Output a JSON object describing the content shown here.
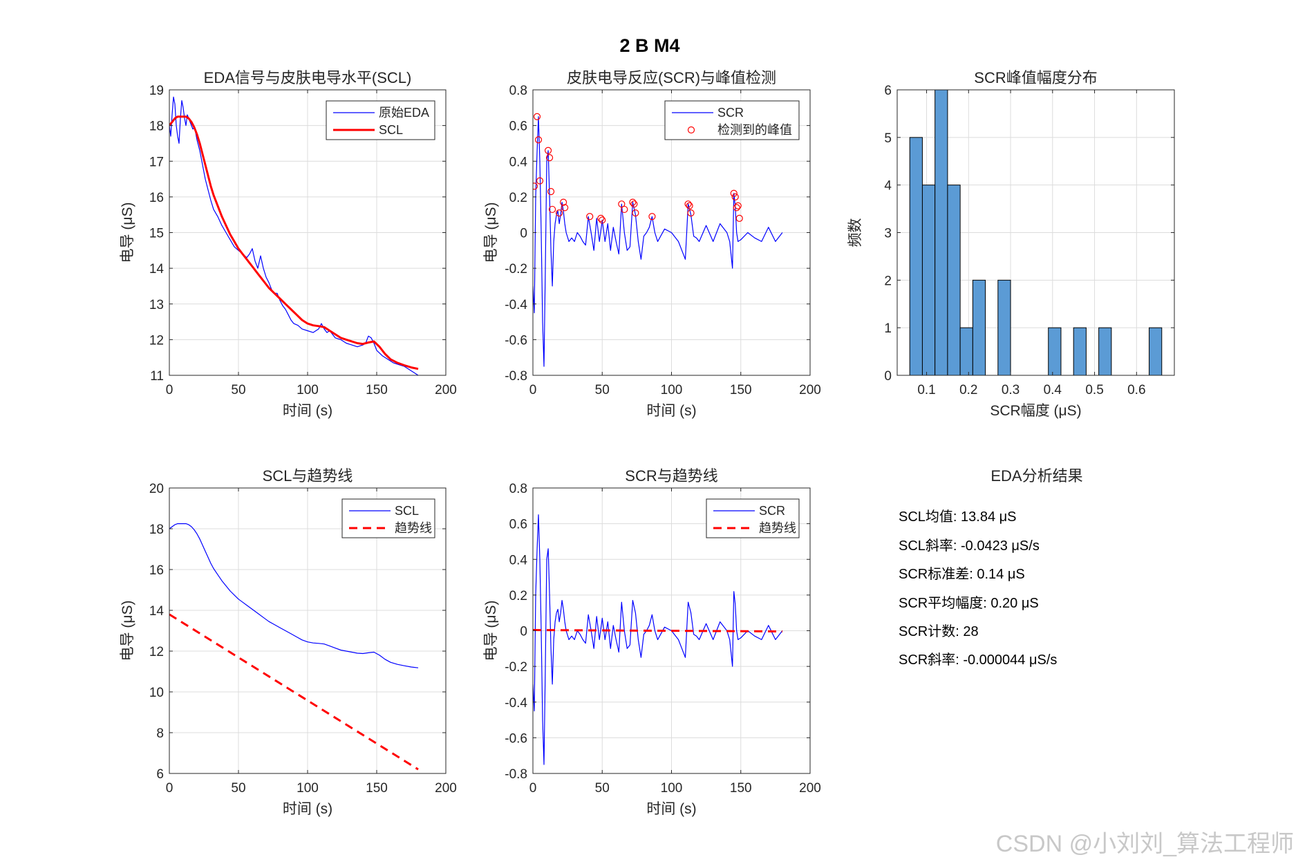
{
  "figure_title": "2 B M4",
  "watermark": "CSDN @小刘刘_算法工程师",
  "colors": {
    "blue": "#0000ff",
    "red": "#ff0000",
    "bar": "#5b9bd5",
    "grid": "#dcdcdc",
    "axis": "#262626"
  },
  "stats": {
    "title": "EDA分析结果",
    "lines": [
      "SCL均值: 13.84 μS",
      "SCL斜率: -0.0423 μS/s",
      "SCR标准差: 0.14 μS",
      "SCR平均幅度: 0.20 μS",
      "SCR计数: 28",
      "SCR斜率: -0.000044 μS/s"
    ]
  },
  "chart_data": [
    {
      "id": "eda_scl",
      "type": "line",
      "title": "EDA信号与皮肤电导水平(SCL)",
      "xlabel": "时间 (s)",
      "ylabel": "电导 (μS)",
      "xlim": [
        0,
        200
      ],
      "ylim": [
        11,
        19
      ],
      "xticks": [
        0,
        50,
        100,
        150,
        200
      ],
      "yticks": [
        11,
        12,
        13,
        14,
        15,
        16,
        17,
        18,
        19
      ],
      "grid": true,
      "legend_position": "top-right",
      "series": [
        {
          "name": "原始EDA",
          "color": "#0000ff",
          "width": 1.2,
          "dash": "",
          "x": [
            0,
            1,
            2,
            3,
            4,
            5,
            6,
            7,
            8,
            9,
            10,
            11,
            12,
            13,
            14,
            15,
            16,
            17,
            18,
            19,
            20,
            22,
            24,
            26,
            28,
            30,
            32,
            35,
            38,
            41,
            44,
            47,
            50,
            53,
            56,
            58,
            60,
            62,
            64,
            66,
            68,
            70,
            72,
            74,
            76,
            78,
            80,
            82,
            84,
            86,
            88,
            90,
            93,
            96,
            100,
            104,
            108,
            110,
            112,
            114,
            116,
            118,
            120,
            124,
            128,
            132,
            136,
            140,
            142,
            144,
            146,
            148,
            150,
            154,
            158,
            162,
            166,
            170,
            174,
            178,
            180
          ],
          "y": [
            18.0,
            17.7,
            18.3,
            18.8,
            18.6,
            18.0,
            17.7,
            17.5,
            18.2,
            18.7,
            18.5,
            18.2,
            18.0,
            18.3,
            18.2,
            18.1,
            18.0,
            17.9,
            17.95,
            17.8,
            17.6,
            17.3,
            16.9,
            16.5,
            16.2,
            15.9,
            15.65,
            15.45,
            15.2,
            15.0,
            14.8,
            14.6,
            14.5,
            14.4,
            14.3,
            14.4,
            14.55,
            14.2,
            14.0,
            14.35,
            14.0,
            13.75,
            13.6,
            13.4,
            13.3,
            13.3,
            13.1,
            12.95,
            12.85,
            12.7,
            12.55,
            12.45,
            12.4,
            12.3,
            12.25,
            12.2,
            12.3,
            12.45,
            12.3,
            12.2,
            12.25,
            12.15,
            12.05,
            12.0,
            11.9,
            11.85,
            11.8,
            11.85,
            11.9,
            12.1,
            12.05,
            11.9,
            11.7,
            11.55,
            11.45,
            11.35,
            11.3,
            11.25,
            11.15,
            11.05,
            11.0
          ]
        },
        {
          "name": "SCL",
          "color": "#ff0000",
          "width": 3,
          "dash": "",
          "x": [
            0,
            2,
            4,
            6,
            8,
            10,
            12,
            14,
            16,
            18,
            20,
            22,
            24,
            26,
            28,
            30,
            32,
            35,
            38,
            41,
            44,
            47,
            50,
            53,
            56,
            60,
            64,
            68,
            72,
            76,
            80,
            84,
            88,
            92,
            96,
            100,
            104,
            108,
            112,
            116,
            120,
            124,
            128,
            132,
            136,
            140,
            144,
            148,
            152,
            156,
            160,
            165,
            170,
            175,
            180
          ],
          "y": [
            18.0,
            18.1,
            18.2,
            18.25,
            18.25,
            18.25,
            18.25,
            18.2,
            18.1,
            17.95,
            17.75,
            17.5,
            17.2,
            16.9,
            16.6,
            16.3,
            16.05,
            15.75,
            15.45,
            15.2,
            14.95,
            14.75,
            14.55,
            14.4,
            14.25,
            14.05,
            13.85,
            13.65,
            13.45,
            13.3,
            13.15,
            13.0,
            12.85,
            12.7,
            12.55,
            12.45,
            12.4,
            12.38,
            12.35,
            12.25,
            12.15,
            12.05,
            12.0,
            11.95,
            11.9,
            11.88,
            11.92,
            11.95,
            11.8,
            11.6,
            11.45,
            11.35,
            11.28,
            11.22,
            11.18
          ]
        }
      ]
    },
    {
      "id": "scr_peaks",
      "type": "line",
      "title": "皮肤电导反应(SCR)与峰值检测",
      "xlabel": "时间 (s)",
      "ylabel": "电导 (μS)",
      "xlim": [
        0,
        200
      ],
      "ylim": [
        -0.8,
        0.8
      ],
      "xticks": [
        0,
        50,
        100,
        150,
        200
      ],
      "yticks": [
        -0.8,
        -0.6,
        -0.4,
        -0.2,
        0,
        0.2,
        0.4,
        0.6,
        0.8
      ],
      "grid": true,
      "legend_position": "top-right",
      "series": [
        {
          "name": "SCR",
          "color": "#0000ff",
          "width": 1.2,
          "dash": "",
          "x": [
            0,
            1,
            2,
            3,
            4,
            5,
            6,
            7,
            8,
            9,
            10,
            11,
            12,
            13,
            14,
            15,
            16,
            17,
            18,
            19,
            20,
            21,
            22,
            23,
            24,
            26,
            28,
            30,
            32,
            34,
            36,
            38,
            40,
            42,
            44,
            46,
            48,
            50,
            52,
            54,
            56,
            58,
            60,
            62,
            64,
            66,
            68,
            70,
            72,
            74,
            76,
            78,
            80,
            82,
            84,
            86,
            88,
            90,
            95,
            100,
            105,
            110,
            112,
            114,
            116,
            118,
            120,
            125,
            130,
            135,
            140,
            142,
            144,
            145,
            146,
            147,
            148,
            150,
            155,
            160,
            165,
            170,
            175,
            180
          ],
          "y": [
            -0.3,
            -0.45,
            0.2,
            0.45,
            0.65,
            0.4,
            0.0,
            -0.5,
            -0.75,
            -0.2,
            0.4,
            0.46,
            0.2,
            -0.1,
            -0.3,
            -0.05,
            0.05,
            0.1,
            0.12,
            0.05,
            0.1,
            0.17,
            0.12,
            0.05,
            0.0,
            -0.05,
            -0.03,
            -0.05,
            0.0,
            -0.02,
            -0.05,
            -0.07,
            0.09,
            0.0,
            -0.1,
            0.08,
            -0.05,
            0.07,
            -0.05,
            0.05,
            -0.1,
            0.03,
            -0.05,
            -0.12,
            0.16,
            0.0,
            -0.1,
            -0.08,
            0.17,
            0.1,
            -0.05,
            -0.15,
            -0.02,
            0.0,
            0.03,
            0.09,
            0.0,
            -0.05,
            0.02,
            0.0,
            -0.05,
            -0.15,
            0.16,
            0.1,
            -0.02,
            -0.03,
            -0.05,
            0.04,
            -0.05,
            0.05,
            0.0,
            -0.05,
            -0.2,
            0.22,
            0.15,
            0.0,
            -0.05,
            -0.04,
            0.0,
            -0.03,
            -0.05,
            0.03,
            -0.05,
            0.0
          ]
        },
        {
          "name": "检测到的峰值",
          "color": "#ff0000",
          "marker": "circle",
          "x": [
            1,
            3,
            4,
            5,
            11,
            12,
            13,
            14,
            19,
            22,
            23,
            41,
            49,
            50,
            64,
            66,
            72,
            73,
            74,
            86,
            112,
            113,
            114,
            145,
            146,
            147,
            148,
            149
          ],
          "y": [
            0.26,
            0.65,
            0.52,
            0.29,
            0.46,
            0.42,
            0.23,
            0.13,
            0.11,
            0.17,
            0.14,
            0.09,
            0.08,
            0.07,
            0.16,
            0.13,
            0.17,
            0.16,
            0.11,
            0.09,
            0.16,
            0.15,
            0.11,
            0.22,
            0.2,
            0.14,
            0.15,
            0.08
          ]
        }
      ]
    },
    {
      "id": "scr_hist",
      "type": "bar",
      "title": "SCR峰值幅度分布",
      "xlabel": "SCR幅度 (μS)",
      "ylabel": "频数",
      "xlim": [
        0.03,
        0.69
      ],
      "ylim": [
        0,
        6
      ],
      "xticks": [
        0.1,
        0.2,
        0.3,
        0.4,
        0.5,
        0.6
      ],
      "yticks": [
        0,
        1,
        2,
        3,
        4,
        5,
        6
      ],
      "grid": true,
      "bin_width": 0.03,
      "bin_edges_left": [
        0.06,
        0.09,
        0.12,
        0.15,
        0.18,
        0.21,
        0.27,
        0.39,
        0.45,
        0.51,
        0.63
      ],
      "values": [
        5,
        4,
        6,
        4,
        1,
        2,
        2,
        1,
        1,
        1,
        1
      ]
    },
    {
      "id": "scl_trend",
      "type": "line",
      "title": "SCL与趋势线",
      "xlabel": "时间 (s)",
      "ylabel": "电导 (μS)",
      "xlim": [
        0,
        200
      ],
      "ylim": [
        6,
        20
      ],
      "xticks": [
        0,
        50,
        100,
        150,
        200
      ],
      "yticks": [
        6,
        8,
        10,
        12,
        14,
        16,
        18,
        20
      ],
      "grid": true,
      "legend_position": "top-right",
      "series": [
        {
          "name": "SCL",
          "color": "#0000ff",
          "width": 1.2,
          "dash": "",
          "x": [
            0,
            2,
            4,
            6,
            8,
            10,
            12,
            14,
            16,
            18,
            20,
            22,
            24,
            26,
            28,
            30,
            32,
            35,
            38,
            41,
            44,
            47,
            50,
            53,
            56,
            60,
            64,
            68,
            72,
            76,
            80,
            84,
            88,
            92,
            96,
            100,
            104,
            108,
            112,
            116,
            120,
            124,
            128,
            132,
            136,
            140,
            144,
            148,
            152,
            156,
            160,
            165,
            170,
            175,
            180
          ],
          "y": [
            18.0,
            18.1,
            18.2,
            18.25,
            18.25,
            18.25,
            18.25,
            18.2,
            18.1,
            17.95,
            17.75,
            17.5,
            17.2,
            16.9,
            16.6,
            16.3,
            16.05,
            15.75,
            15.45,
            15.2,
            14.95,
            14.75,
            14.55,
            14.4,
            14.25,
            14.05,
            13.85,
            13.65,
            13.45,
            13.3,
            13.15,
            13.0,
            12.85,
            12.7,
            12.55,
            12.45,
            12.4,
            12.38,
            12.35,
            12.25,
            12.15,
            12.05,
            12.0,
            11.95,
            11.9,
            11.88,
            11.92,
            11.95,
            11.8,
            11.6,
            11.45,
            11.35,
            11.28,
            11.22,
            11.18
          ]
        },
        {
          "name": "趋势线",
          "color": "#ff0000",
          "width": 3,
          "dash": "12,8",
          "x": [
            0,
            180
          ],
          "y": [
            13.8,
            6.2
          ]
        }
      ]
    },
    {
      "id": "scr_trend",
      "type": "line",
      "title": "SCR与趋势线",
      "xlabel": "时间 (s)",
      "ylabel": "电导 (μS)",
      "xlim": [
        0,
        200
      ],
      "ylim": [
        -0.8,
        0.8
      ],
      "xticks": [
        0,
        50,
        100,
        150,
        200
      ],
      "yticks": [
        -0.8,
        -0.6,
        -0.4,
        -0.2,
        0,
        0.2,
        0.4,
        0.6,
        0.8
      ],
      "grid": true,
      "legend_position": "top-right",
      "series": [
        {
          "name": "SCR",
          "color": "#0000ff",
          "width": 1.2,
          "dash": "",
          "x": [
            0,
            1,
            2,
            3,
            4,
            5,
            6,
            7,
            8,
            9,
            10,
            11,
            12,
            13,
            14,
            15,
            16,
            17,
            18,
            19,
            20,
            21,
            22,
            23,
            24,
            26,
            28,
            30,
            32,
            34,
            36,
            38,
            40,
            42,
            44,
            46,
            48,
            50,
            52,
            54,
            56,
            58,
            60,
            62,
            64,
            66,
            68,
            70,
            72,
            74,
            76,
            78,
            80,
            82,
            84,
            86,
            88,
            90,
            95,
            100,
            105,
            110,
            112,
            114,
            116,
            118,
            120,
            125,
            130,
            135,
            140,
            142,
            144,
            145,
            146,
            147,
            148,
            150,
            155,
            160,
            165,
            170,
            175,
            180
          ],
          "y": [
            -0.3,
            -0.45,
            0.2,
            0.45,
            0.65,
            0.4,
            0.0,
            -0.5,
            -0.75,
            -0.2,
            0.4,
            0.46,
            0.2,
            -0.1,
            -0.3,
            -0.05,
            0.05,
            0.1,
            0.12,
            0.05,
            0.1,
            0.17,
            0.12,
            0.05,
            0.0,
            -0.05,
            -0.03,
            -0.05,
            0.0,
            -0.02,
            -0.05,
            -0.07,
            0.09,
            0.0,
            -0.1,
            0.08,
            -0.05,
            0.07,
            -0.05,
            0.05,
            -0.1,
            0.03,
            -0.05,
            -0.12,
            0.16,
            0.0,
            -0.1,
            -0.08,
            0.17,
            0.1,
            -0.05,
            -0.15,
            -0.02,
            0.0,
            0.03,
            0.09,
            0.0,
            -0.05,
            0.02,
            0.0,
            -0.05,
            -0.15,
            0.16,
            0.1,
            -0.02,
            -0.03,
            -0.05,
            0.04,
            -0.05,
            0.05,
            0.0,
            -0.05,
            -0.2,
            0.22,
            0.15,
            0.0,
            -0.05,
            -0.04,
            0.0,
            -0.03,
            -0.05,
            0.03,
            -0.05,
            0.0
          ]
        },
        {
          "name": "趋势线",
          "color": "#ff0000",
          "width": 3,
          "dash": "12,8",
          "x": [
            0,
            180
          ],
          "y": [
            0.004,
            -0.004
          ]
        }
      ]
    }
  ]
}
